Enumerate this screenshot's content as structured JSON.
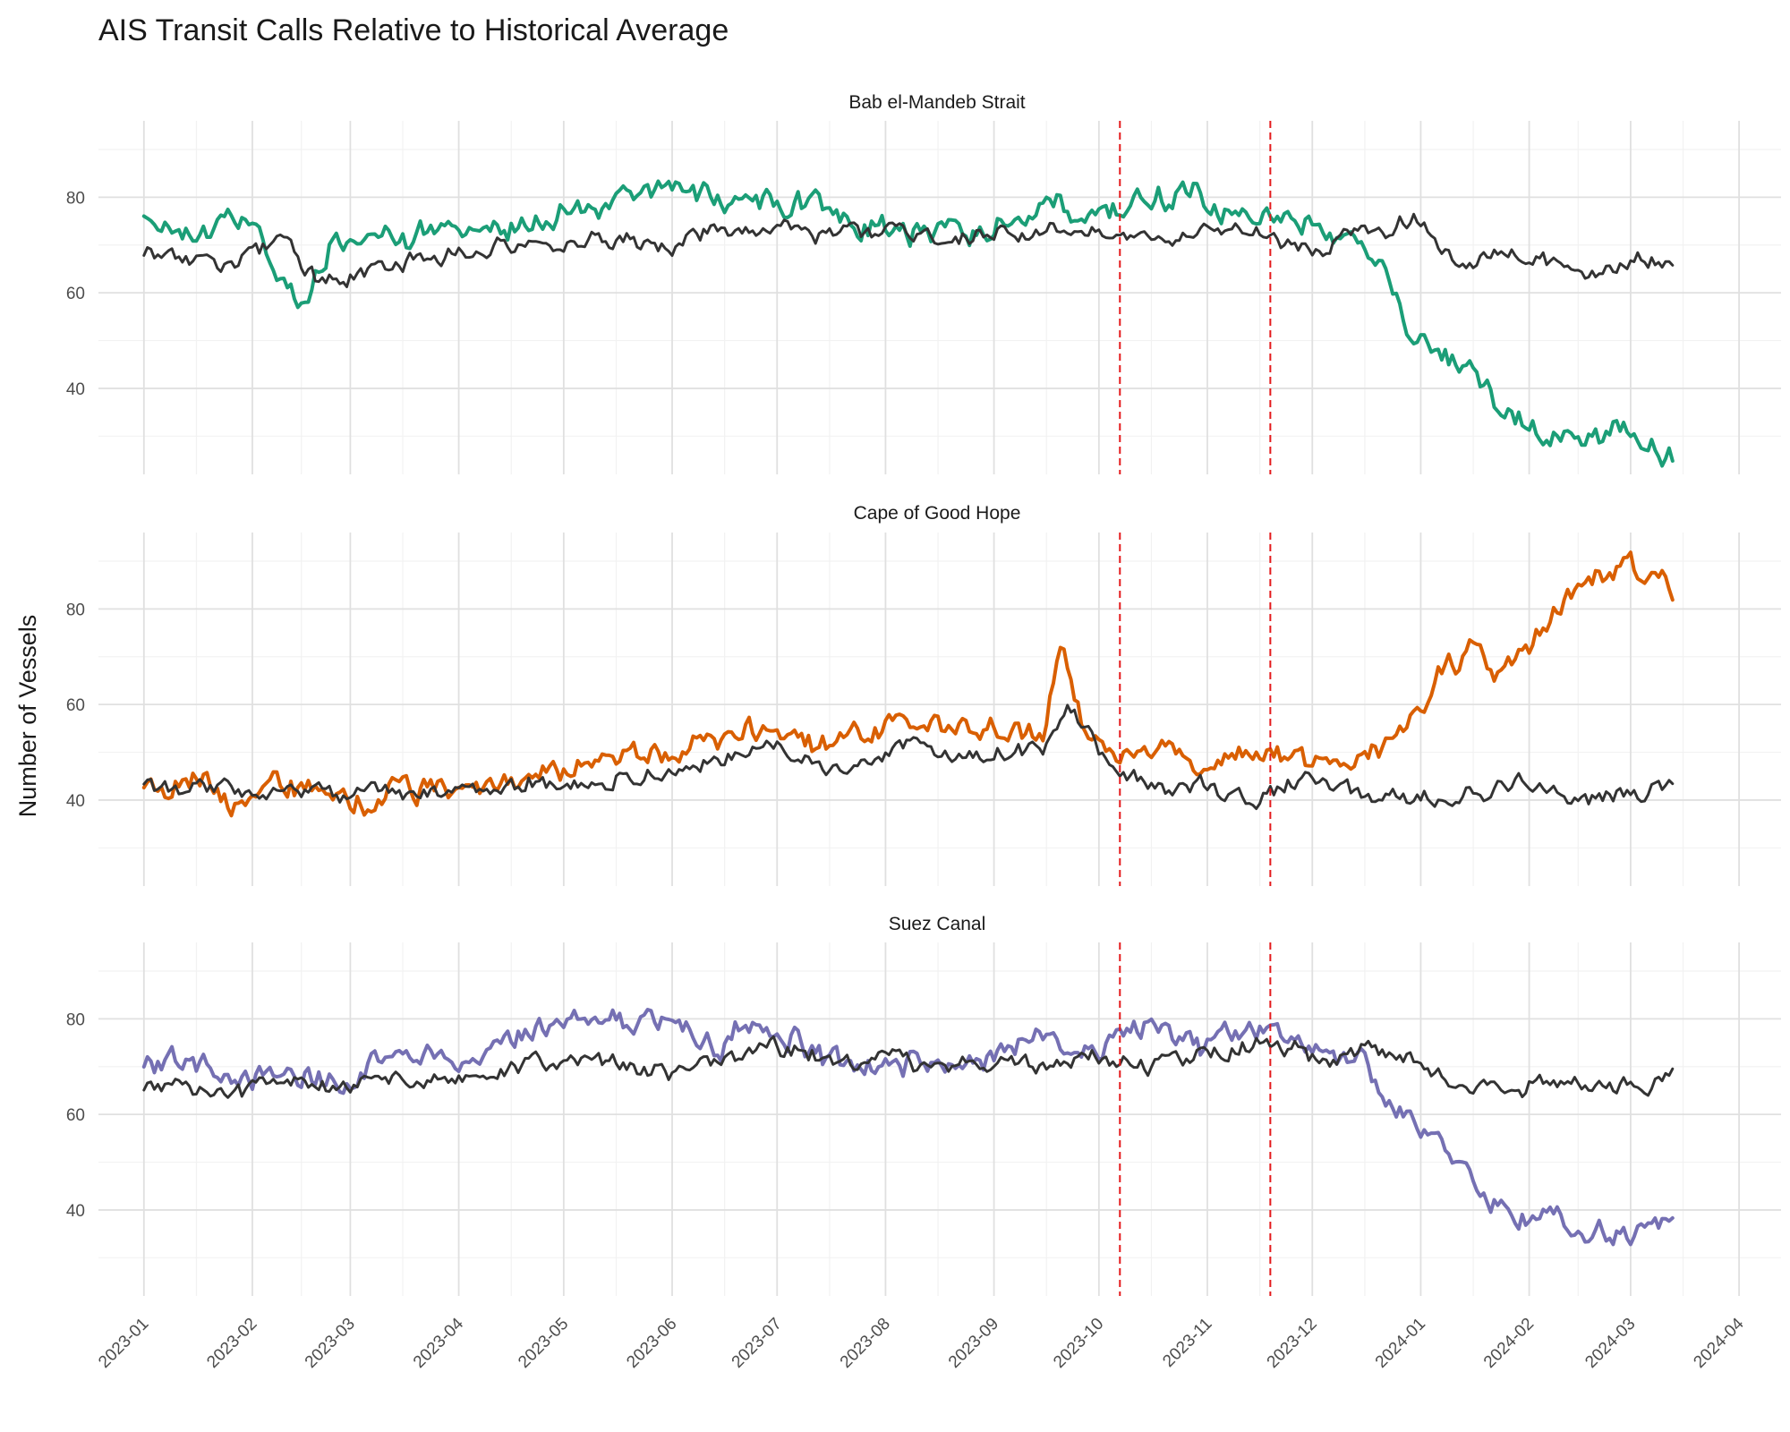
{
  "chart_data": {
    "type": "line",
    "title": "AIS Transit Calls Relative to Historical Average",
    "ylabel": "Number of Vessels",
    "xlabel": "",
    "x_ticks": [
      "2023-01",
      "2023-02",
      "2023-03",
      "2023-04",
      "2023-05",
      "2023-06",
      "2023-07",
      "2023-08",
      "2023-09",
      "2023-10",
      "2023-11",
      "2023-12",
      "2024-01",
      "2024-02",
      "2024-03",
      "2024-04"
    ],
    "y_ticks": [
      40,
      60,
      80
    ],
    "ylim": [
      22,
      96
    ],
    "xlim": [
      "2022-12-19",
      "2024-04-13"
    ],
    "grid": true,
    "legend": "none",
    "reference_lines": {
      "color": "#e41a1c",
      "style": "dashed",
      "dates": [
        "2023-10-07",
        "2023-11-19"
      ]
    },
    "historical_color": "#333333",
    "facets": [
      {
        "name": "Bab el-Mandeb Strait",
        "color": "#1b9e77",
        "series": [
          {
            "x": [
              "2023-01-01",
              "2023-01-15",
              "2023-02-01",
              "2023-02-10",
              "2023-02-15",
              "2023-02-25",
              "2023-03-15",
              "2023-04-01",
              "2023-04-15",
              "2023-05-01",
              "2023-05-15",
              "2023-06-01",
              "2023-06-15",
              "2023-07-01",
              "2023-07-15",
              "2023-08-01",
              "2023-08-15",
              "2023-09-01",
              "2023-09-15",
              "2023-10-01",
              "2023-10-07",
              "2023-10-15",
              "2023-10-25",
              "2023-11-10",
              "2023-11-25",
              "2023-12-10",
              "2023-12-20",
              "2023-12-28",
              "2024-01-05",
              "2024-01-15",
              "2024-01-25",
              "2024-02-05",
              "2024-02-20",
              "2024-03-01",
              "2024-03-13"
            ],
            "values": [
              76,
              72,
              74,
              62,
              59,
              71,
              71,
              73,
              74,
              77,
              79,
              81,
              80,
              80,
              77,
              74,
              73,
              75,
              76,
              77,
              78,
              79,
              81,
              77,
              76,
              73,
              68,
              55,
              47,
              45,
              36,
              31,
              31,
              31,
              26
            ]
          },
          {
            "x": [
              "2023-01-01",
              "2023-01-15",
              "2023-02-01",
              "2023-02-10",
              "2023-02-20",
              "2023-03-15",
              "2023-04-01",
              "2023-04-15",
              "2023-05-01",
              "2023-05-15",
              "2023-06-01",
              "2023-06-15",
              "2023-07-01",
              "2023-07-15",
              "2023-08-01",
              "2023-08-15",
              "2023-09-01",
              "2023-09-15",
              "2023-10-01",
              "2023-10-15",
              "2023-11-01",
              "2023-11-15",
              "2023-12-01",
              "2023-12-20",
              "2023-12-30",
              "2024-01-05",
              "2024-01-15",
              "2024-02-01",
              "2024-02-15",
              "2024-03-01",
              "2024-03-13"
            ],
            "values": [
              68,
              65,
              67,
              70,
              62,
              66,
              68,
              70,
              71,
              72,
              70,
              73,
              74,
              72,
              73,
              72,
              73,
              74,
              74,
              72,
              73,
              74,
              70,
              73,
              76,
              70,
              66,
              68,
              63,
              66,
              68
            ]
          }
        ]
      },
      {
        "name": "Cape of Good Hope",
        "color": "#d95f02",
        "series": [
          {
            "x": [
              "2023-01-01",
              "2023-01-15",
              "2023-01-25",
              "2023-02-10",
              "2023-02-25",
              "2023-03-15",
              "2023-04-01",
              "2023-04-15",
              "2023-05-01",
              "2023-05-15",
              "2023-06-01",
              "2023-06-15",
              "2023-06-25",
              "2023-07-15",
              "2023-08-01",
              "2023-08-15",
              "2023-09-01",
              "2023-09-15",
              "2023-09-20",
              "2023-09-27",
              "2023-10-07",
              "2023-10-20",
              "2023-11-01",
              "2023-11-19",
              "2023-12-05",
              "2023-12-20",
              "2023-12-28",
              "2024-01-05",
              "2024-01-15",
              "2024-01-25",
              "2024-02-05",
              "2024-02-20",
              "2024-03-01",
              "2024-03-13"
            ],
            "values": [
              42,
              45,
              39,
              44,
              39,
              41,
              44,
              43,
              47,
              49,
              51,
              53,
              55,
              52,
              56,
              55,
              56,
              52,
              72,
              56,
              50,
              52,
              48,
              50,
              46,
              50,
              52,
              67,
              70,
              66,
              76,
              85,
              88,
              83
            ]
          },
          {
            "x": [
              "2023-01-01",
              "2023-01-15",
              "2023-02-01",
              "2023-02-15",
              "2023-03-01",
              "2023-03-15",
              "2023-04-01",
              "2023-04-15",
              "2023-05-01",
              "2023-05-15",
              "2023-06-01",
              "2023-06-15",
              "2023-07-01",
              "2023-07-15",
              "2023-08-01",
              "2023-08-15",
              "2023-09-01",
              "2023-09-15",
              "2023-09-22",
              "2023-10-07",
              "2023-10-20",
              "2023-11-01",
              "2023-11-15",
              "2023-12-01",
              "2023-12-15",
              "2024-01-01",
              "2024-01-15",
              "2024-02-01",
              "2024-02-15",
              "2024-03-01",
              "2024-03-13"
            ],
            "values": [
              42,
              41,
              42,
              43,
              41,
              42,
              41,
              42,
              44,
              45,
              47,
              48,
              53,
              47,
              52,
              49,
              50,
              51,
              60,
              46,
              42,
              42,
              40,
              44,
              40,
              41,
              42,
              43,
              41,
              41,
              43
            ]
          }
        ]
      },
      {
        "name": "Suez Canal",
        "color": "#7570b3",
        "series": [
          {
            "x": [
              "2023-01-01",
              "2023-01-15",
              "2023-02-01",
              "2023-02-15",
              "2023-03-01",
              "2023-03-15",
              "2023-04-01",
              "2023-04-15",
              "2023-05-01",
              "2023-05-15",
              "2023-06-01",
              "2023-06-15",
              "2023-06-25",
              "2023-07-15",
              "2023-08-01",
              "2023-08-15",
              "2023-09-01",
              "2023-09-10",
              "2023-09-20",
              "2023-10-01",
              "2023-10-10",
              "2023-10-20",
              "2023-11-01",
              "2023-11-15",
              "2023-12-01",
              "2023-12-15",
              "2023-12-25",
              "2024-01-05",
              "2024-01-15",
              "2024-02-01",
              "2024-02-15",
              "2024-03-01",
              "2024-03-13"
            ],
            "values": [
              72,
              71,
              69,
              70,
              67,
              73,
              71,
              76,
              79,
              80,
              78,
              75,
              80,
              71,
              69,
              71,
              72,
              78,
              74,
              74,
              79,
              77,
              74,
              77,
              74,
              72,
              62,
              54,
              46,
              38,
              37,
              33,
              38
            ]
          },
          {
            "x": [
              "2023-01-01",
              "2023-01-15",
              "2023-02-01",
              "2023-02-15",
              "2023-03-01",
              "2023-03-15",
              "2023-04-01",
              "2023-04-15",
              "2023-05-01",
              "2023-05-15",
              "2023-06-01",
              "2023-06-15",
              "2023-07-01",
              "2023-07-15",
              "2023-08-01",
              "2023-08-15",
              "2023-09-01",
              "2023-09-15",
              "2023-10-01",
              "2023-10-15",
              "2023-11-01",
              "2023-11-15",
              "2023-12-01",
              "2023-12-15",
              "2024-01-01",
              "2024-01-15",
              "2024-02-01",
              "2024-02-15",
              "2024-03-01",
              "2024-03-13"
            ],
            "values": [
              66,
              65,
              65,
              67,
              66,
              68,
              67,
              70,
              71,
              70,
              68,
              70,
              74,
              71,
              72,
              70,
              71,
              71,
              72,
              71,
              73,
              75,
              72,
              74,
              70,
              65,
              66,
              67,
              66,
              69
            ]
          }
        ]
      }
    ]
  }
}
